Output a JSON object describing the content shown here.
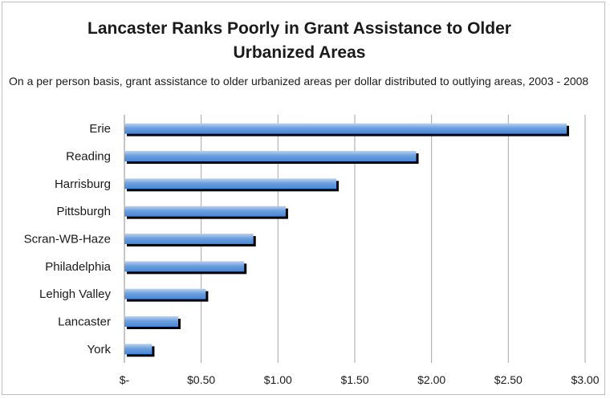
{
  "chart_data": {
    "type": "bar",
    "orientation": "horizontal",
    "title": "Lancaster Ranks Poorly in Grant Assistance to Older\nUrbanized Areas",
    "subtitle": "On a per person basis, grant assistance to older urbanized areas per dollar distributed to outlying areas, 2003 - 2008",
    "categories": [
      "Erie",
      "Reading",
      "Harrisburg",
      "Pittsburgh",
      "Scran-WB-Haze",
      "Philadelphia",
      "Lehigh Valley",
      "Lancaster",
      "York"
    ],
    "values": [
      2.88,
      1.9,
      1.38,
      1.05,
      0.84,
      0.78,
      0.53,
      0.35,
      0.18
    ],
    "xlim": [
      0,
      3.0
    ],
    "xticks": [
      0,
      0.5,
      1.0,
      1.5,
      2.0,
      2.5,
      3.0
    ],
    "xtick_labels": [
      "$-",
      "$0.50",
      "$1.00",
      "$1.50",
      "$2.00",
      "$2.50",
      "$3.00"
    ],
    "grid": "vertical",
    "legend": "none",
    "bar_color": "#4a86d4",
    "bar_highlight_color": "#b8d3f4",
    "shadow_color": "#000000"
  }
}
